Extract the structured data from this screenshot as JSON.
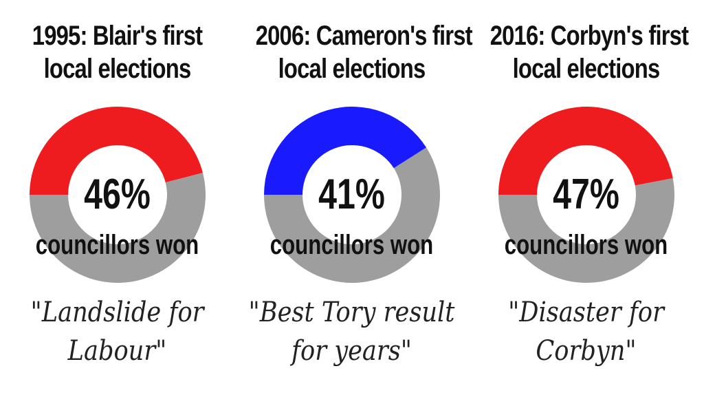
{
  "chart_data": [
    {
      "type": "pie",
      "title": "1995: Blair's first local elections",
      "title_lines": [
        "1995: Blair's first",
        "local elections"
      ],
      "percent_label": "46%",
      "value_label": "councillors won",
      "value": 46,
      "slices": [
        {
          "label": "councillors won",
          "value": 46,
          "color": "#ee1c1f"
        },
        {
          "label": "",
          "value": 54,
          "color": "#9e9e9e"
        }
      ],
      "quote_lines": [
        "\"Landslide for",
        "Labour\""
      ]
    },
    {
      "type": "pie",
      "title": "2006: Cameron's first local elections",
      "title_lines": [
        "2006: Cameron's first",
        "local elections"
      ],
      "percent_label": "41%",
      "value_label": "councillors won",
      "value": 41,
      "slices": [
        {
          "label": "councillors won",
          "value": 41,
          "color": "#1a1aff"
        },
        {
          "label": "",
          "value": 59,
          "color": "#9e9e9e"
        }
      ],
      "quote_lines": [
        "\"Best Tory result",
        "for years\""
      ]
    },
    {
      "type": "pie",
      "title": "2016: Corbyn's first local elections",
      "title_lines": [
        "2016: Corbyn's first",
        "local elections"
      ],
      "percent_label": "47%",
      "value_label": "councillors won",
      "value": 47,
      "slices": [
        {
          "label": "councillors won",
          "value": 47,
          "color": "#ee1c1f"
        },
        {
          "label": "",
          "value": 53,
          "color": "#9e9e9e"
        }
      ],
      "quote_lines": [
        "\"Disaster for",
        "Corbyn\""
      ]
    }
  ]
}
